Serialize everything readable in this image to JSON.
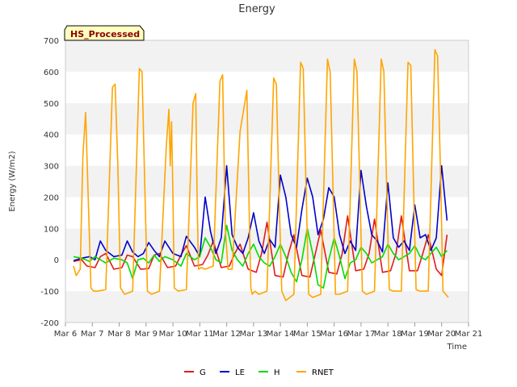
{
  "chart_data": {
    "type": "line",
    "title": "Energy",
    "xlabel": "Time",
    "ylabel": "Energy (W/m2)",
    "site_label": "HS_Processed",
    "ylim": [
      -200,
      700
    ],
    "yticks": [
      -200,
      -100,
      0,
      100,
      200,
      300,
      400,
      500,
      600,
      700
    ],
    "xlim": [
      6,
      21
    ],
    "xticks": [
      {
        "value": 6,
        "label": "Mar 6"
      },
      {
        "value": 7,
        "label": "Mar 7"
      },
      {
        "value": 8,
        "label": "Mar 8"
      },
      {
        "value": 9,
        "label": "Mar 9"
      },
      {
        "value": 10,
        "label": "Mar 10"
      },
      {
        "value": 11,
        "label": "Mar 11"
      },
      {
        "value": 12,
        "label": "Mar 12"
      },
      {
        "value": 13,
        "label": "Mar 13"
      },
      {
        "value": 14,
        "label": "Mar 14"
      },
      {
        "value": 15,
        "label": "Mar 15"
      },
      {
        "value": 16,
        "label": "Mar 16"
      },
      {
        "value": 17,
        "label": "Mar 17"
      },
      {
        "value": 18,
        "label": "Mar 18"
      },
      {
        "value": 19,
        "label": "Mar 19"
      },
      {
        "value": 20,
        "label": "Mar 20"
      },
      {
        "value": 21,
        "label": "Mar 21"
      }
    ],
    "grid": "horizontal bands",
    "legend_position": "bottom",
    "series": [
      {
        "name": "G",
        "color": "#e31a1c",
        "x": [
          6.3,
          6.6,
          6.8,
          7.1,
          7.3,
          7.5,
          7.8,
          8.1,
          8.3,
          8.5,
          8.8,
          9.1,
          9.3,
          9.5,
          9.8,
          10.1,
          10.3,
          10.5,
          10.8,
          11.1,
          11.3,
          11.5,
          11.8,
          12.1,
          12.3,
          12.5,
          12.8,
          13.1,
          13.3,
          13.5,
          13.8,
          14.1,
          14.3,
          14.5,
          14.8,
          15.1,
          15.3,
          15.5,
          15.8,
          16.1,
          16.3,
          16.5,
          16.8,
          17.1,
          17.3,
          17.5,
          17.8,
          18.1,
          18.3,
          18.5,
          18.8,
          19.1,
          19.3,
          19.5,
          19.8,
          20.0,
          20.2
        ],
        "y": [
          -5,
          0,
          -20,
          -25,
          10,
          20,
          -30,
          -25,
          15,
          10,
          -30,
          -28,
          15,
          20,
          -25,
          -20,
          15,
          45,
          -20,
          -15,
          15,
          60,
          -25,
          -20,
          20,
          50,
          -30,
          -40,
          20,
          120,
          -50,
          -55,
          20,
          80,
          -50,
          -55,
          20,
          95,
          -40,
          -45,
          20,
          140,
          -35,
          -30,
          20,
          130,
          -40,
          -35,
          20,
          140,
          -35,
          -35,
          20,
          80,
          -30,
          -50,
          80
        ]
      },
      {
        "name": "LE",
        "color": "#0000cc",
        "x": [
          6.3,
          6.6,
          6.9,
          7.1,
          7.3,
          7.5,
          7.8,
          8.1,
          8.3,
          8.5,
          8.7,
          8.9,
          9.1,
          9.3,
          9.5,
          9.7,
          10.0,
          10.3,
          10.5,
          10.8,
          11.0,
          11.2,
          11.4,
          11.6,
          11.8,
          12.0,
          12.2,
          12.4,
          12.6,
          12.8,
          13.0,
          13.2,
          13.4,
          13.6,
          13.8,
          14.0,
          14.2,
          14.4,
          14.6,
          14.8,
          15.0,
          15.2,
          15.4,
          15.6,
          15.8,
          16.0,
          16.2,
          16.4,
          16.6,
          16.8,
          17.0,
          17.2,
          17.4,
          17.6,
          17.8,
          18.0,
          18.2,
          18.4,
          18.6,
          18.8,
          19.0,
          19.2,
          19.4,
          19.6,
          19.8,
          20.0,
          20.2
        ],
        "y": [
          -3,
          5,
          10,
          0,
          60,
          30,
          10,
          15,
          60,
          25,
          10,
          20,
          55,
          30,
          10,
          60,
          20,
          10,
          75,
          40,
          10,
          200,
          90,
          20,
          70,
          300,
          80,
          40,
          20,
          70,
          150,
          60,
          20,
          65,
          40,
          270,
          200,
          80,
          40,
          160,
          260,
          200,
          80,
          130,
          230,
          200,
          80,
          20,
          60,
          30,
          285,
          170,
          80,
          60,
          25,
          245,
          70,
          40,
          60,
          30,
          175,
          70,
          80,
          30,
          70,
          300,
          125
        ]
      },
      {
        "name": "H",
        "color": "#00dd00",
        "x": [
          6.3,
          6.6,
          6.9,
          7.1,
          7.3,
          7.5,
          7.8,
          8.1,
          8.3,
          8.5,
          8.7,
          8.9,
          9.1,
          9.3,
          9.5,
          9.7,
          10.0,
          10.3,
          10.5,
          10.8,
          11.0,
          11.2,
          11.4,
          11.6,
          11.8,
          12.0,
          12.2,
          12.4,
          12.6,
          12.8,
          13.0,
          13.2,
          13.4,
          13.6,
          13.8,
          14.0,
          14.2,
          14.4,
          14.6,
          14.8,
          15.0,
          15.2,
          15.4,
          15.6,
          15.8,
          16.0,
          16.2,
          16.4,
          16.6,
          16.8,
          17.0,
          17.2,
          17.4,
          17.6,
          17.8,
          18.0,
          18.2,
          18.4,
          18.6,
          18.8,
          19.0,
          19.2,
          19.4,
          19.6,
          19.8,
          20.0,
          20.2
        ],
        "y": [
          10,
          5,
          -5,
          10,
          0,
          -10,
          5,
          0,
          -10,
          -60,
          0,
          5,
          -10,
          15,
          -5,
          10,
          0,
          -20,
          20,
          0,
          10,
          70,
          40,
          0,
          -10,
          110,
          30,
          0,
          -20,
          20,
          50,
          10,
          -10,
          -20,
          10,
          50,
          10,
          -40,
          -70,
          0,
          100,
          20,
          -80,
          -90,
          0,
          70,
          10,
          -60,
          -10,
          0,
          40,
          20,
          -10,
          0,
          10,
          50,
          20,
          0,
          10,
          20,
          45,
          10,
          0,
          20,
          40,
          10,
          30
        ]
      },
      {
        "name": "RNET",
        "color": "#ffa500",
        "x": [
          6.3,
          6.4,
          6.55,
          6.65,
          6.75,
          6.85,
          6.95,
          7.05,
          7.2,
          7.5,
          7.75,
          7.85,
          7.95,
          8.05,
          8.2,
          8.5,
          8.75,
          8.85,
          8.95,
          9.05,
          9.2,
          9.5,
          9.75,
          9.85,
          9.9,
          9.95,
          10.0,
          10.05,
          10.2,
          10.5,
          10.75,
          10.85,
          10.9,
          10.95,
          11.05,
          11.2,
          11.5,
          11.75,
          11.85,
          11.95,
          12.05,
          12.2,
          12.5,
          12.75,
          12.85,
          12.9,
          12.95,
          13.05,
          13.2,
          13.5,
          13.75,
          13.85,
          13.95,
          14.05,
          14.2,
          14.5,
          14.75,
          14.85,
          14.95,
          15.05,
          15.2,
          15.5,
          15.75,
          15.85,
          15.95,
          16.05,
          16.2,
          16.5,
          16.75,
          16.85,
          16.95,
          17.05,
          17.2,
          17.5,
          17.75,
          17.85,
          17.95,
          18.05,
          18.2,
          18.5,
          18.75,
          18.85,
          18.95,
          19.05,
          19.2,
          19.5,
          19.75,
          19.85,
          19.95,
          20.05,
          20.15,
          20.25
        ],
        "y": [
          -20,
          -50,
          -30,
          330,
          470,
          190,
          -90,
          -100,
          -100,
          -95,
          550,
          560,
          300,
          -90,
          -110,
          -100,
          610,
          600,
          250,
          -100,
          -110,
          -100,
          360,
          480,
          300,
          440,
          200,
          -90,
          -100,
          -95,
          500,
          530,
          200,
          -30,
          -25,
          -30,
          -20,
          570,
          590,
          100,
          -30,
          -30,
          410,
          540,
          100,
          -90,
          -110,
          -100,
          -110,
          -100,
          580,
          560,
          200,
          -100,
          -130,
          -110,
          630,
          610,
          250,
          -110,
          -120,
          -110,
          640,
          600,
          250,
          -110,
          -110,
          -100,
          640,
          600,
          250,
          -100,
          -110,
          -100,
          640,
          600,
          250,
          -95,
          -100,
          -100,
          630,
          620,
          250,
          -95,
          -100,
          -100,
          670,
          650,
          300,
          -100,
          -110,
          -120
        ]
      }
    ]
  }
}
